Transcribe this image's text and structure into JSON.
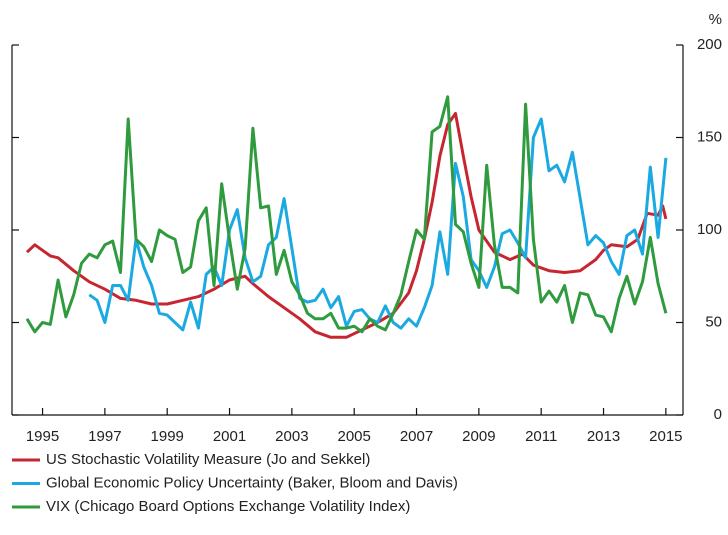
{
  "chart_data": {
    "type": "line",
    "ylabel": "%",
    "xlim": [
      1994.02,
      2015.55
    ],
    "xticks": [
      1995,
      1997,
      1999,
      2001,
      2003,
      2005,
      2007,
      2009,
      2011,
      2013,
      2015
    ],
    "ylim": [
      0,
      200
    ],
    "yticks": [
      0,
      50,
      100,
      150,
      200
    ],
    "series": [
      {
        "name": "US Stochastic Volatility Measure (Jo and Sekkel)",
        "color": "#c62630",
        "x": [
          1994.5,
          1994.75,
          1995,
          1995.25,
          1995.5,
          1996,
          1996.5,
          1997,
          1997.5,
          1998,
          1998.5,
          1999,
          1999.5,
          2000,
          2000.5,
          2001,
          2001.25,
          2001.5,
          2001.75,
          2002.25,
          2002.75,
          2003.25,
          2003.75,
          2004.25,
          2004.75,
          2005.25,
          2005.75,
          2006.25,
          2006.75,
          2007,
          2007.25,
          2007.5,
          2007.75,
          2008,
          2008.25,
          2008.5,
          2008.75,
          2009,
          2009.5,
          2010,
          2010.4,
          2010.75,
          2011.25,
          2011.75,
          2012.25,
          2012.75,
          2013,
          2013.25,
          2013.75,
          2014.1,
          2014.4,
          2014.75,
          2014.9,
          2015
        ],
        "values": [
          88,
          92,
          89,
          86,
          85,
          78,
          72,
          68,
          63,
          62,
          60,
          60,
          62,
          64,
          68,
          73,
          74,
          75,
          71,
          64,
          58,
          52,
          45,
          42,
          42,
          46,
          50,
          55,
          66,
          78,
          95,
          115,
          140,
          157,
          163,
          140,
          118,
          100,
          88,
          84,
          87,
          81,
          78,
          77,
          78,
          84,
          89,
          92,
          91,
          95,
          109,
          108,
          113,
          106
        ]
      },
      {
        "name": "Global Economic Policy Uncertainty (Baker, Bloom and Davis)",
        "color": "#1ba9e1",
        "x": [
          1996.5,
          1996.75,
          1997,
          1997.25,
          1997.5,
          1997.75,
          1998,
          1998.25,
          1998.5,
          1998.75,
          1999,
          1999.25,
          1999.5,
          1999.75,
          2000,
          2000.25,
          2000.5,
          2000.75,
          2001,
          2001.25,
          2001.5,
          2001.75,
          2002,
          2002.25,
          2002.5,
          2002.75,
          2003,
          2003.25,
          2003.5,
          2003.75,
          2004,
          2004.25,
          2004.5,
          2004.75,
          2005,
          2005.25,
          2005.5,
          2005.75,
          2006,
          2006.25,
          2006.5,
          2006.75,
          2007,
          2007.25,
          2007.5,
          2007.75,
          2008,
          2008.25,
          2008.5,
          2008.75,
          2009,
          2009.25,
          2009.5,
          2009.75,
          2010,
          2010.25,
          2010.5,
          2010.75,
          2011,
          2011.25,
          2011.5,
          2011.75,
          2012,
          2012.25,
          2012.5,
          2012.75,
          2013,
          2013.25,
          2013.5,
          2013.75,
          2014,
          2014.25,
          2014.5,
          2014.75,
          2015
        ],
        "values": [
          65,
          62,
          50,
          70,
          70,
          62,
          95,
          80,
          70,
          55,
          54,
          50,
          46,
          61,
          47,
          76,
          80,
          70,
          100,
          111,
          85,
          72,
          75,
          92,
          96,
          117,
          90,
          63,
          61,
          62,
          68,
          58,
          64,
          48,
          56,
          57,
          52,
          50,
          59,
          50,
          47,
          52,
          48,
          58,
          70,
          99,
          76,
          136,
          118,
          84,
          78,
          69,
          80,
          98,
          100,
          93,
          85,
          150,
          160,
          132,
          135,
          126,
          142,
          117,
          92,
          97,
          93,
          83,
          76,
          97,
          100,
          87,
          134,
          96,
          139
        ]
      },
      {
        "name": "VIX (Chicago Board Options Exchange Volatility Index)",
        "color": "#2f9b3e",
        "x": [
          1994.5,
          1994.75,
          1995,
          1995.25,
          1995.5,
          1995.75,
          1996,
          1996.25,
          1996.5,
          1996.75,
          1997,
          1997.25,
          1997.5,
          1997.75,
          1998,
          1998.25,
          1998.5,
          1998.75,
          1999,
          1999.25,
          1999.5,
          1999.75,
          2000,
          2000.25,
          2000.5,
          2000.75,
          2001,
          2001.25,
          2001.5,
          2001.75,
          2002,
          2002.25,
          2002.5,
          2002.75,
          2003,
          2003.25,
          2003.5,
          2003.75,
          2004,
          2004.25,
          2004.5,
          2004.75,
          2005,
          2005.25,
          2005.5,
          2005.75,
          2006,
          2006.25,
          2006.5,
          2006.75,
          2007,
          2007.25,
          2007.5,
          2007.75,
          2008,
          2008.25,
          2008.5,
          2008.75,
          2009,
          2009.25,
          2009.5,
          2009.75,
          2010,
          2010.25,
          2010.5,
          2010.75,
          2011,
          2011.25,
          2011.5,
          2011.75,
          2012,
          2012.25,
          2012.5,
          2012.75,
          2013,
          2013.25,
          2013.5,
          2013.75,
          2014,
          2014.25,
          2014.5,
          2014.75,
          2015
        ],
        "values": [
          52,
          45,
          50,
          49,
          73,
          53,
          65,
          82,
          87,
          85,
          92,
          94,
          77,
          160,
          95,
          91,
          83,
          100,
          97,
          95,
          77,
          80,
          105,
          112,
          70,
          125,
          95,
          68,
          90,
          155,
          112,
          113,
          76,
          89,
          72,
          65,
          55,
          52,
          52,
          55,
          47,
          47,
          48,
          45,
          52,
          48,
          46,
          55,
          65,
          83,
          100,
          95,
          153,
          156,
          172,
          103,
          99,
          82,
          69,
          135,
          92,
          69,
          69,
          66,
          168,
          95,
          61,
          67,
          61,
          70,
          50,
          66,
          65,
          54,
          53,
          45,
          63,
          75,
          60,
          72,
          96,
          71,
          55
        ]
      }
    ]
  }
}
